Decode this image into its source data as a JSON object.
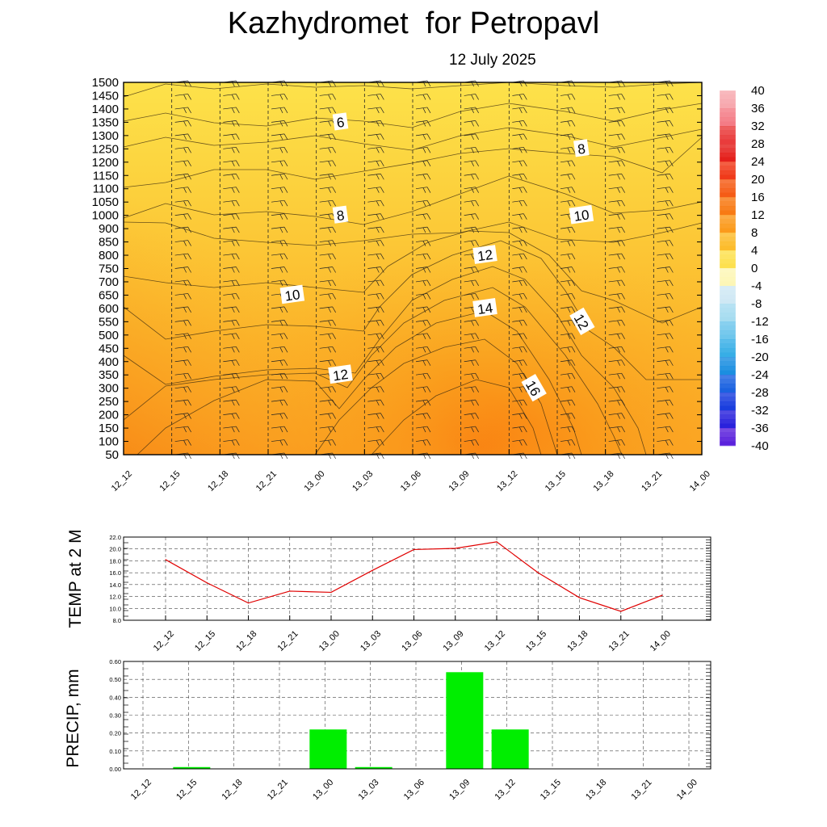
{
  "title": "Kazhydromet  for Petropavl",
  "subtitle": "12 July 2025",
  "time_labels": [
    "12_12",
    "12_15",
    "12_18",
    "12_21",
    "13_00",
    "13_03",
    "13_06",
    "13_09",
    "13_12",
    "13_15",
    "13_18",
    "13_21",
    "14_00"
  ],
  "chart_data": [
    {
      "type": "heatmap",
      "description_role": "time-height cross-section of temperature",
      "y_ticks": [
        50,
        100,
        150,
        200,
        250,
        300,
        350,
        400,
        450,
        500,
        550,
        600,
        650,
        700,
        750,
        800,
        850,
        900,
        1000,
        1050,
        1100,
        1150,
        1200,
        1250,
        1300,
        1350,
        1400,
        1450,
        1500
      ],
      "x_categories": [
        "12_12",
        "12_15",
        "12_18",
        "12_21",
        "13_00",
        "13_03",
        "13_06",
        "13_09",
        "13_12",
        "13_15",
        "13_18",
        "13_21",
        "14_00"
      ],
      "colorbar_ticks": [
        "40",
        "36",
        "32",
        "28",
        "24",
        "20",
        "16",
        "12",
        "8",
        "4",
        "0",
        "-4",
        "-8",
        "-12",
        "-16",
        "-20",
        "-24",
        "-28",
        "-32",
        "-36",
        "-40"
      ],
      "contour_labels": [
        {
          "text": "6",
          "time": "13_00",
          "height": 1350
        },
        {
          "text": "8",
          "time": "13_00",
          "height": 1000
        },
        {
          "text": "8",
          "time": "13_15",
          "height": 1250
        },
        {
          "text": "10",
          "time": "12_21",
          "height": 650
        },
        {
          "text": "10",
          "time": "13_15",
          "height": 1000
        },
        {
          "text": "12",
          "time": "13_00",
          "height": 350
        },
        {
          "text": "12",
          "time": "13_09",
          "height": 800
        },
        {
          "text": "12",
          "time": "13_15",
          "height": 550
        },
        {
          "text": "14",
          "time": "13_09",
          "height": 600
        },
        {
          "text": "16",
          "time": "13_12",
          "height": 300
        }
      ],
      "colors": {
        "warm_low": "#fde24a",
        "warm_mid": "#fbb52a",
        "warm_high": "#f98512",
        "panel_border": "#000000"
      }
    },
    {
      "type": "line",
      "ylabel": "TEMP at 2 M",
      "ylim": [
        8.0,
        22.0
      ],
      "y_ticks": [
        "22.0",
        "20.0",
        "18.0",
        "16.0",
        "14.0",
        "12.0",
        "10.0",
        "8.0"
      ],
      "x_categories": [
        "12_12",
        "12_15",
        "12_18",
        "12_21",
        "13_00",
        "13_03",
        "13_06",
        "13_09",
        "13_12",
        "13_15",
        "13_18",
        "13_21",
        "14_00"
      ],
      "series": [
        {
          "values": [
            18.2,
            14.3,
            10.9,
            12.9,
            12.7,
            16.4,
            19.9,
            20.1,
            21.2,
            16.0,
            11.8,
            9.5,
            12.2
          ],
          "color": "#e00000"
        }
      ]
    },
    {
      "type": "bar",
      "ylabel": "PRECIP, mm",
      "ylim": [
        0.0,
        0.6
      ],
      "y_ticks": [
        "0.60",
        "0.50",
        "0.40",
        "0.30",
        "0.20",
        "0.10",
        "0.00"
      ],
      "categories": [
        "12_12",
        "12_15",
        "12_18",
        "12_21",
        "13_00",
        "13_03",
        "13_06",
        "13_09",
        "13_12",
        "13_15",
        "13_18",
        "13_21",
        "14_00"
      ],
      "values": [
        0.0,
        0.01,
        0.0,
        0.0,
        0.22,
        0.01,
        0.0,
        0.54,
        0.22,
        0.0,
        0.0,
        0.0,
        0.0
      ],
      "color": "#00ee00"
    }
  ]
}
